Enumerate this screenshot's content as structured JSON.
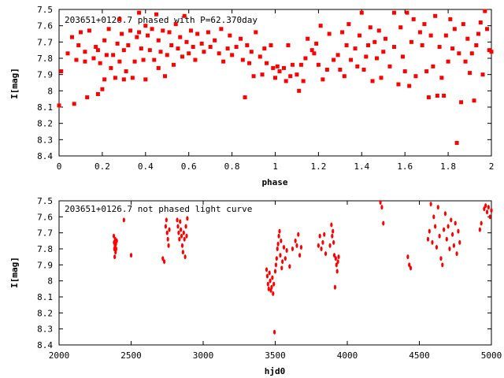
{
  "chart_data": [
    {
      "type": "scatter",
      "title": "203651+0126.7 phased with P=62.370day",
      "xlabel": "phase",
      "ylabel": "I[mag]",
      "xlim": [
        0,
        2
      ],
      "ylim": [
        8.4,
        7.5
      ],
      "y_inverted": true,
      "xticks": [
        "0",
        "0.2",
        "0.4",
        "0.6",
        "0.8",
        "1",
        "1.2",
        "1.4",
        "1.6",
        "1.8",
        "2"
      ],
      "yticks": [
        "7.5",
        "7.6",
        "7.7",
        "7.8",
        "7.9",
        "8",
        "8.1",
        "8.2",
        "8.3",
        "8.4"
      ],
      "marker_color": "#ff0000",
      "points": [
        [
          0.0,
          8.09
        ],
        [
          0.01,
          7.88
        ],
        [
          0.04,
          7.77
        ],
        [
          0.06,
          7.67
        ],
        [
          0.07,
          8.08
        ],
        [
          0.08,
          7.81
        ],
        [
          0.09,
          7.72
        ],
        [
          0.1,
          7.64
        ],
        [
          0.12,
          7.82
        ],
        [
          0.12,
          7.76
        ],
        [
          0.13,
          8.04
        ],
        [
          0.14,
          7.63
        ],
        [
          0.16,
          7.8
        ],
        [
          0.17,
          7.73
        ],
        [
          0.18,
          8.02
        ],
        [
          0.18,
          7.75
        ],
        [
          0.19,
          7.83
        ],
        [
          0.2,
          7.99
        ],
        [
          0.21,
          7.69
        ],
        [
          0.21,
          7.93
        ],
        [
          0.22,
          7.78
        ],
        [
          0.23,
          7.62
        ],
        [
          0.24,
          7.86
        ],
        [
          0.25,
          7.78
        ],
        [
          0.26,
          7.92
        ],
        [
          0.27,
          7.71
        ],
        [
          0.28,
          7.56
        ],
        [
          0.28,
          7.82
        ],
        [
          0.29,
          7.65
        ],
        [
          0.3,
          7.93
        ],
        [
          0.3,
          7.75
        ],
        [
          0.31,
          7.88
        ],
        [
          0.32,
          7.72
        ],
        [
          0.33,
          7.63
        ],
        [
          0.34,
          7.92
        ],
        [
          0.35,
          7.82
        ],
        [
          0.36,
          7.67
        ],
        [
          0.37,
          7.52
        ],
        [
          0.37,
          7.64
        ],
        [
          0.38,
          7.74
        ],
        [
          0.39,
          7.81
        ],
        [
          0.4,
          7.6
        ],
        [
          0.4,
          7.93
        ],
        [
          0.41,
          7.66
        ],
        [
          0.42,
          7.75
        ],
        [
          0.43,
          7.62
        ],
        [
          0.44,
          7.81
        ],
        [
          0.45,
          7.53
        ],
        [
          0.46,
          7.69
        ],
        [
          0.46,
          7.86
        ],
        [
          0.47,
          7.76
        ],
        [
          0.48,
          7.63
        ],
        [
          0.49,
          7.91
        ],
        [
          0.5,
          7.78
        ],
        [
          0.51,
          7.64
        ],
        [
          0.52,
          7.72
        ],
        [
          0.53,
          7.84
        ],
        [
          0.54,
          7.59
        ],
        [
          0.55,
          7.74
        ],
        [
          0.56,
          7.67
        ],
        [
          0.57,
          7.79
        ],
        [
          0.58,
          7.54
        ],
        [
          0.59,
          7.7
        ],
        [
          0.6,
          7.77
        ],
        [
          0.61,
          7.63
        ],
        [
          0.62,
          7.73
        ],
        [
          0.63,
          7.81
        ],
        [
          0.64,
          7.65
        ],
        [
          0.66,
          7.71
        ],
        [
          0.67,
          7.76
        ],
        [
          0.69,
          7.64
        ],
        [
          0.7,
          7.73
        ],
        [
          0.72,
          7.69
        ],
        [
          0.74,
          7.77
        ],
        [
          0.75,
          7.62
        ],
        [
          0.76,
          7.82
        ],
        [
          0.78,
          7.74
        ],
        [
          0.79,
          7.66
        ],
        [
          0.8,
          7.78
        ],
        [
          0.82,
          7.73
        ],
        [
          0.84,
          7.68
        ],
        [
          0.85,
          7.81
        ],
        [
          0.86,
          8.04
        ],
        [
          0.87,
          7.72
        ],
        [
          0.88,
          7.83
        ],
        [
          0.89,
          7.76
        ],
        [
          0.9,
          7.91
        ],
        [
          0.91,
          7.64
        ],
        [
          0.93,
          7.79
        ],
        [
          0.94,
          7.9
        ],
        [
          0.95,
          7.74
        ],
        [
          0.96,
          7.83
        ],
        [
          0.98,
          7.72
        ],
        [
          0.99,
          7.86
        ],
        [
          1.0,
          7.92
        ],
        [
          1.01,
          7.85
        ],
        [
          1.02,
          7.88
        ],
        [
          1.04,
          7.86
        ],
        [
          1.05,
          7.94
        ],
        [
          1.06,
          7.72
        ],
        [
          1.07,
          7.91
        ],
        [
          1.08,
          7.84
        ],
        [
          1.1,
          7.9
        ],
        [
          1.11,
          8.0
        ],
        [
          1.12,
          7.84
        ],
        [
          1.13,
          7.94
        ],
        [
          1.14,
          7.8
        ],
        [
          1.15,
          7.68
        ],
        [
          1.17,
          7.75
        ],
        [
          1.18,
          7.77
        ],
        [
          1.19,
          7.71
        ],
        [
          1.2,
          7.84
        ],
        [
          1.21,
          7.6
        ],
        [
          1.22,
          7.93
        ],
        [
          1.24,
          7.87
        ],
        [
          1.25,
          7.65
        ],
        [
          1.27,
          7.81
        ],
        [
          1.29,
          7.78
        ],
        [
          1.3,
          7.87
        ],
        [
          1.31,
          7.64
        ],
        [
          1.32,
          7.91
        ],
        [
          1.33,
          7.72
        ],
        [
          1.34,
          7.59
        ],
        [
          1.35,
          7.81
        ],
        [
          1.37,
          7.74
        ],
        [
          1.38,
          7.85
        ],
        [
          1.39,
          7.66
        ],
        [
          1.4,
          7.52
        ],
        [
          1.41,
          7.87
        ],
        [
          1.42,
          7.79
        ],
        [
          1.43,
          7.72
        ],
        [
          1.44,
          7.61
        ],
        [
          1.45,
          7.94
        ],
        [
          1.46,
          7.7
        ],
        [
          1.47,
          7.8
        ],
        [
          1.48,
          7.63
        ],
        [
          1.49,
          7.92
        ],
        [
          1.5,
          7.76
        ],
        [
          1.51,
          7.68
        ],
        [
          1.53,
          7.85
        ],
        [
          1.55,
          7.52
        ],
        [
          1.55,
          7.73
        ],
        [
          1.57,
          7.96
        ],
        [
          1.58,
          7.61
        ],
        [
          1.59,
          7.79
        ],
        [
          1.6,
          7.88
        ],
        [
          1.61,
          7.52
        ],
        [
          1.62,
          7.97
        ],
        [
          1.63,
          7.7
        ],
        [
          1.64,
          7.56
        ],
        [
          1.65,
          7.91
        ],
        [
          1.67,
          7.64
        ],
        [
          1.68,
          7.72
        ],
        [
          1.69,
          7.59
        ],
        [
          1.7,
          7.88
        ],
        [
          1.71,
          8.04
        ],
        [
          1.72,
          7.66
        ],
        [
          1.73,
          7.85
        ],
        [
          1.74,
          7.54
        ],
        [
          1.75,
          8.03
        ],
        [
          1.76,
          7.73
        ],
        [
          1.77,
          7.92
        ],
        [
          1.78,
          8.03
        ],
        [
          1.79,
          7.66
        ],
        [
          1.8,
          7.82
        ],
        [
          1.81,
          7.56
        ],
        [
          1.82,
          7.74
        ],
        [
          1.83,
          7.62
        ],
        [
          1.84,
          8.32
        ],
        [
          1.85,
          7.77
        ],
        [
          1.86,
          8.07
        ],
        [
          1.87,
          7.59
        ],
        [
          1.88,
          7.82
        ],
        [
          1.89,
          7.68
        ],
        [
          1.9,
          7.89
        ],
        [
          1.91,
          7.77
        ],
        [
          1.92,
          8.06
        ],
        [
          1.93,
          7.72
        ],
        [
          1.94,
          7.65
        ],
        [
          1.95,
          7.58
        ],
        [
          1.96,
          7.9
        ],
        [
          1.97,
          7.51
        ],
        [
          1.98,
          7.62
        ],
        [
          1.99,
          7.75
        ],
        [
          2.0,
          7.76
        ]
      ]
    },
    {
      "type": "scatter",
      "title": "203651+0126.7 not phased light curve",
      "xlabel": "hjd0",
      "ylabel": "I[mag]",
      "xlim": [
        2000,
        5000
      ],
      "ylim": [
        8.4,
        7.5
      ],
      "y_inverted": true,
      "xticks": [
        "2000",
        "2500",
        "3000",
        "3500",
        "4000",
        "4500",
        "5000"
      ],
      "yticks": [
        "7.5",
        "7.6",
        "7.7",
        "7.8",
        "7.9",
        "8",
        "8.1",
        "8.2",
        "8.3",
        "8.4"
      ],
      "marker_color": "#ff0000",
      "points": [
        [
          2380,
          7.72
        ],
        [
          2382,
          7.76
        ],
        [
          2384,
          7.8
        ],
        [
          2386,
          7.85
        ],
        [
          2388,
          7.78
        ],
        [
          2390,
          7.74
        ],
        [
          2392,
          7.82
        ],
        [
          2394,
          7.77
        ],
        [
          2396,
          7.8
        ],
        [
          2400,
          7.75
        ],
        [
          2450,
          7.62
        ],
        [
          2500,
          7.84
        ],
        [
          2720,
          7.86
        ],
        [
          2730,
          7.88
        ],
        [
          2740,
          7.66
        ],
        [
          2745,
          7.62
        ],
        [
          2750,
          7.7
        ],
        [
          2755,
          7.74
        ],
        [
          2760,
          7.78
        ],
        [
          2765,
          7.68
        ],
        [
          2820,
          7.62
        ],
        [
          2825,
          7.66
        ],
        [
          2830,
          7.7
        ],
        [
          2835,
          7.74
        ],
        [
          2840,
          7.63
        ],
        [
          2845,
          7.68
        ],
        [
          2850,
          7.72
        ],
        [
          2855,
          7.78
        ],
        [
          2860,
          7.82
        ],
        [
          2865,
          7.7
        ],
        [
          2870,
          7.74
        ],
        [
          2875,
          7.85
        ],
        [
          2880,
          7.66
        ],
        [
          2885,
          7.72
        ],
        [
          2890,
          7.61
        ],
        [
          3440,
          7.93
        ],
        [
          3445,
          7.97
        ],
        [
          3450,
          8.02
        ],
        [
          3455,
          8.05
        ],
        [
          3460,
          7.95
        ],
        [
          3465,
          8.0
        ],
        [
          3470,
          8.06
        ],
        [
          3475,
          8.04
        ],
        [
          3480,
          7.98
        ],
        [
          3485,
          8.08
        ],
        [
          3490,
          8.02
        ],
        [
          3495,
          8.32
        ],
        [
          3500,
          7.94
        ],
        [
          3505,
          7.9
        ],
        [
          3510,
          7.86
        ],
        [
          3515,
          7.8
        ],
        [
          3520,
          7.77
        ],
        [
          3525,
          7.72
        ],
        [
          3530,
          7.69
        ],
        [
          3535,
          7.84
        ],
        [
          3540,
          7.75
        ],
        [
          3545,
          7.92
        ],
        [
          3550,
          7.88
        ],
        [
          3560,
          7.79
        ],
        [
          3570,
          7.86
        ],
        [
          3580,
          7.81
        ],
        [
          3600,
          7.91
        ],
        [
          3620,
          7.8
        ],
        [
          3640,
          7.75
        ],
        [
          3650,
          7.78
        ],
        [
          3660,
          7.71
        ],
        [
          3670,
          7.84
        ],
        [
          3680,
          7.79
        ],
        [
          3800,
          7.78
        ],
        [
          3810,
          7.72
        ],
        [
          3820,
          7.8
        ],
        [
          3830,
          7.76
        ],
        [
          3840,
          7.71
        ],
        [
          3850,
          7.83
        ],
        [
          3880,
          7.78
        ],
        [
          3890,
          7.65
        ],
        [
          3895,
          7.72
        ],
        [
          3900,
          7.69
        ],
        [
          3905,
          7.76
        ],
        [
          3910,
          7.84
        ],
        [
          3915,
          8.04
        ],
        [
          3920,
          7.86
        ],
        [
          3925,
          7.9
        ],
        [
          3930,
          7.94
        ],
        [
          3935,
          7.88
        ],
        [
          3940,
          7.85
        ],
        [
          4230,
          7.51
        ],
        [
          4240,
          7.54
        ],
        [
          4250,
          7.64
        ],
        [
          4420,
          7.85
        ],
        [
          4430,
          7.9
        ],
        [
          4440,
          7.92
        ],
        [
          4560,
          7.74
        ],
        [
          4570,
          7.69
        ],
        [
          4580,
          7.52
        ],
        [
          4590,
          7.76
        ],
        [
          4600,
          7.6
        ],
        [
          4610,
          7.66
        ],
        [
          4620,
          7.79
        ],
        [
          4630,
          7.54
        ],
        [
          4640,
          7.72
        ],
        [
          4650,
          7.86
        ],
        [
          4660,
          7.9
        ],
        [
          4670,
          7.68
        ],
        [
          4680,
          7.58
        ],
        [
          4690,
          7.74
        ],
        [
          4700,
          7.66
        ],
        [
          4710,
          7.8
        ],
        [
          4720,
          7.62
        ],
        [
          4730,
          7.71
        ],
        [
          4740,
          7.78
        ],
        [
          4750,
          7.64
        ],
        [
          4760,
          7.83
        ],
        [
          4770,
          7.69
        ],
        [
          4780,
          7.76
        ],
        [
          4920,
          7.68
        ],
        [
          4930,
          7.64
        ],
        [
          4950,
          7.55
        ],
        [
          4960,
          7.53
        ],
        [
          4970,
          7.57
        ],
        [
          4980,
          7.54
        ],
        [
          4990,
          7.6
        ],
        [
          5000,
          7.56
        ]
      ]
    }
  ]
}
